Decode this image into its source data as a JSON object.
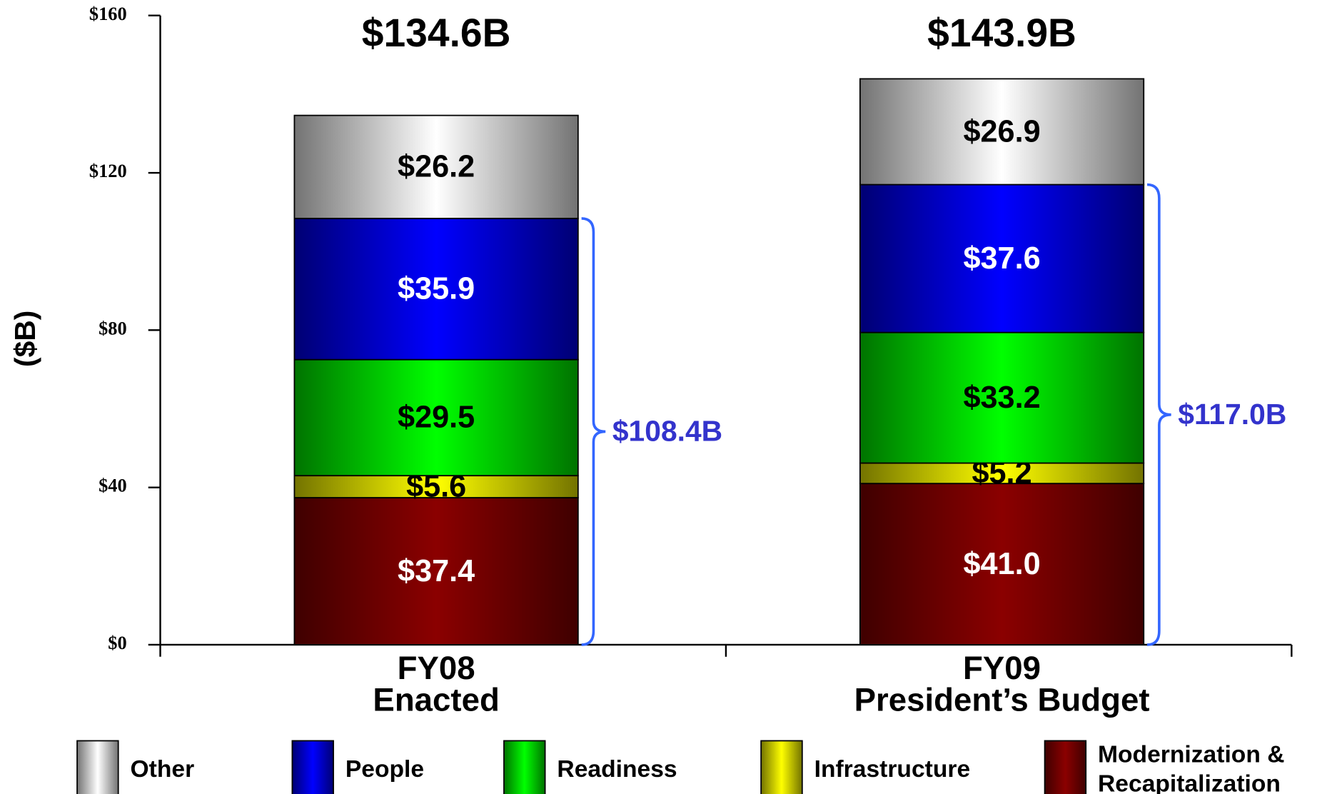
{
  "chart_data": {
    "type": "stacked_bar",
    "y_label": "($B)",
    "categories": [
      [
        "FY08",
        "Enacted"
      ],
      [
        "FY09",
        "President’s Budget"
      ]
    ],
    "series": [
      {
        "name": "Modernization & Recapitalization",
        "color": "#8b0000",
        "label_color": "#ffffff",
        "values": [
          37.4,
          41.0
        ],
        "value_labels": [
          "$37.4",
          "$41.0"
        ]
      },
      {
        "name": "Infrastructure",
        "color": "#ffff00",
        "label_color": "#000000",
        "values": [
          5.6,
          5.2
        ],
        "value_labels": [
          "$5.6",
          "$5.2"
        ]
      },
      {
        "name": "Readiness",
        "color": "#00ff00",
        "label_color": "#000000",
        "values": [
          29.5,
          33.2
        ],
        "value_labels": [
          "$29.5",
          "$33.2"
        ]
      },
      {
        "name": "People",
        "color": "#0000ff",
        "label_color": "#ffffff",
        "values": [
          35.9,
          37.6
        ],
        "value_labels": [
          "$35.9",
          "$37.6"
        ]
      },
      {
        "name": "Other",
        "color": "#ffffff",
        "label_color": "#000000",
        "values": [
          26.2,
          26.9
        ],
        "value_labels": [
          "$26.2",
          "$26.9"
        ]
      }
    ],
    "totals": {
      "values": [
        134.6,
        143.9
      ],
      "value_labels": [
        "$134.6B",
        "$143.9B"
      ]
    },
    "brackets": {
      "values": [
        108.4,
        117.0
      ],
      "value_labels": [
        "$108.4B",
        "$117.0B"
      ],
      "color": "#3366ff",
      "label_color": "#3333cc"
    },
    "ylim": [
      0,
      160
    ],
    "yticks": [
      {
        "value": 0,
        "label": "$0"
      },
      {
        "value": 40,
        "label": "$40"
      },
      {
        "value": 80,
        "label": "$80"
      },
      {
        "value": 120,
        "label": "$120"
      },
      {
        "value": 160,
        "label": "$160"
      }
    ],
    "legend_order": [
      4,
      3,
      2,
      1,
      0
    ]
  }
}
